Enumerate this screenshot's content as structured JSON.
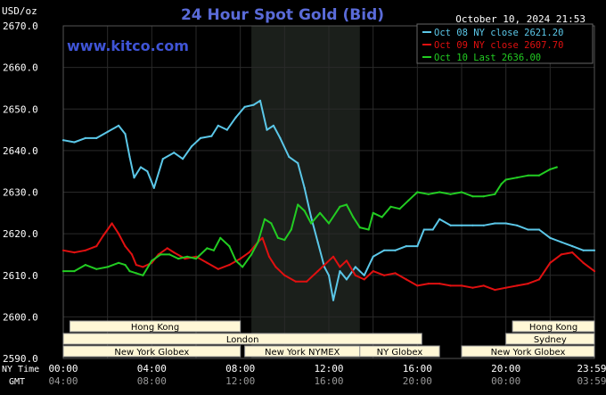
{
  "header": {
    "unit": "USD/oz",
    "title": "24 Hour Spot Gold (Bid)",
    "timestamp": "October 10, 2024 21:53",
    "website": "www.kitco.com"
  },
  "colors": {
    "background": "#000000",
    "plot_background": "#000000",
    "nymex_band": "#1b1f1b",
    "grid": "#2a2a2a",
    "title": "#5a6bd8",
    "axis_text": "#ffffff",
    "session_bar_bg": "#fff7d6",
    "session_bar_border": "#9a9a9a",
    "session_bar_text": "#000000",
    "website": "#3f54d6"
  },
  "legend": [
    {
      "label": "Oct 08 NY close 2621.20",
      "color": "#5bc7e8"
    },
    {
      "label": "Oct 09 NY close 2607.70",
      "color": "#e01010"
    },
    {
      "label": "Oct 10 Last 2636.00",
      "color": "#22cc22"
    }
  ],
  "sessions": [
    {
      "label": "Hong Kong",
      "row": 0,
      "start": 0.3,
      "end": 8.0
    },
    {
      "label": "Hong Kong",
      "row": 0,
      "start": 20.3,
      "end": 24.0
    },
    {
      "label": "London",
      "row": 1,
      "start": 0.0,
      "end": 16.2
    },
    {
      "label": "Sydney",
      "row": 1,
      "start": 20.0,
      "end": 24.0
    },
    {
      "label": "New York Globex",
      "row": 2,
      "start": 0.0,
      "end": 8.0
    },
    {
      "label": "New York NYMEX",
      "row": 2,
      "start": 8.2,
      "end": 13.4
    },
    {
      "label": "NY Globex",
      "row": 2,
      "start": 13.4,
      "end": 17.0
    },
    {
      "label": "New York Globex",
      "row": 2,
      "start": 18.0,
      "end": 24.0
    }
  ],
  "bottom_axis": {
    "ny_label": "NY Time",
    "gmt_label": "GMT",
    "ny_ticks": [
      "00:00",
      "04:00",
      "08:00",
      "12:00",
      "16:00",
      "20:00",
      "23:59"
    ],
    "gmt_ticks": [
      "04:00",
      "08:00",
      "12:00",
      "16:00",
      "20:00",
      "00:00",
      "03:59"
    ]
  },
  "chart_data": {
    "type": "line",
    "title": "24 Hour Spot Gold (Bid)",
    "ylabel": "USD/oz",
    "ylim": [
      2590,
      2670
    ],
    "yticks": [
      "2670.0",
      "2660.0",
      "2650.0",
      "2640.0",
      "2630.0",
      "2620.0",
      "2610.0",
      "2600.0",
      "2590.0"
    ],
    "xlim": [
      0,
      24
    ],
    "nymex_band": [
      8.5,
      13.4
    ],
    "series": [
      {
        "name": "Oct 08 NY close 2621.20",
        "color": "#5bc7e8",
        "points": [
          [
            0,
            2642.5
          ],
          [
            0.5,
            2642.0
          ],
          [
            1.0,
            2643.0
          ],
          [
            1.5,
            2643.0
          ],
          [
            2.0,
            2644.5
          ],
          [
            2.5,
            2646.0
          ],
          [
            2.8,
            2644.0
          ],
          [
            3.0,
            2638.5
          ],
          [
            3.2,
            2633.5
          ],
          [
            3.5,
            2636.0
          ],
          [
            3.8,
            2635.0
          ],
          [
            4.1,
            2631.0
          ],
          [
            4.5,
            2638.0
          ],
          [
            5.0,
            2639.5
          ],
          [
            5.4,
            2638.0
          ],
          [
            5.8,
            2641.0
          ],
          [
            6.2,
            2643.0
          ],
          [
            6.7,
            2643.5
          ],
          [
            7.0,
            2646.0
          ],
          [
            7.4,
            2645.0
          ],
          [
            7.8,
            2648.0
          ],
          [
            8.2,
            2650.5
          ],
          [
            8.6,
            2651.0
          ],
          [
            8.9,
            2652.0
          ],
          [
            9.2,
            2645.0
          ],
          [
            9.5,
            2646.0
          ],
          [
            9.8,
            2643.0
          ],
          [
            10.2,
            2638.5
          ],
          [
            10.6,
            2637.0
          ],
          [
            10.9,
            2631.0
          ],
          [
            11.2,
            2624.0
          ],
          [
            11.5,
            2618.0
          ],
          [
            11.8,
            2612.0
          ],
          [
            12.0,
            2610.0
          ],
          [
            12.2,
            2604.0
          ],
          [
            12.5,
            2611.0
          ],
          [
            12.8,
            2609.0
          ],
          [
            13.2,
            2612.0
          ],
          [
            13.6,
            2610.0
          ],
          [
            14.0,
            2614.5
          ],
          [
            14.5,
            2616.0
          ],
          [
            15.0,
            2616.0
          ],
          [
            15.5,
            2617.0
          ],
          [
            16.0,
            2617.0
          ],
          [
            16.3,
            2621.0
          ],
          [
            16.7,
            2621.0
          ],
          [
            17.0,
            2623.5
          ],
          [
            17.5,
            2622.0
          ],
          [
            18.0,
            2622.0
          ],
          [
            18.5,
            2622.0
          ],
          [
            19.0,
            2622.0
          ],
          [
            19.5,
            2622.5
          ],
          [
            20.0,
            2622.5
          ],
          [
            20.5,
            2622.0
          ],
          [
            21.0,
            2621.0
          ],
          [
            21.5,
            2621.0
          ],
          [
            22.0,
            2619.0
          ],
          [
            22.5,
            2618.0
          ],
          [
            23.0,
            2617.0
          ],
          [
            23.5,
            2616.0
          ],
          [
            24.0,
            2616.0
          ]
        ]
      },
      {
        "name": "Oct 09 NY close 2607.70",
        "color": "#e01010",
        "points": [
          [
            0,
            2616.0
          ],
          [
            0.5,
            2615.5
          ],
          [
            1.0,
            2616.0
          ],
          [
            1.5,
            2617.0
          ],
          [
            1.8,
            2619.5
          ],
          [
            2.0,
            2621.0
          ],
          [
            2.2,
            2622.5
          ],
          [
            2.5,
            2620.0
          ],
          [
            2.8,
            2617.0
          ],
          [
            3.1,
            2615.0
          ],
          [
            3.3,
            2612.5
          ],
          [
            3.6,
            2612.0
          ],
          [
            4.0,
            2613.0
          ],
          [
            4.3,
            2615.0
          ],
          [
            4.7,
            2616.5
          ],
          [
            5.0,
            2615.5
          ],
          [
            5.5,
            2614.0
          ],
          [
            6.0,
            2614.5
          ],
          [
            6.5,
            2613.0
          ],
          [
            7.0,
            2611.5
          ],
          [
            7.5,
            2612.5
          ],
          [
            8.0,
            2614.0
          ],
          [
            8.4,
            2615.5
          ],
          [
            8.8,
            2618.0
          ],
          [
            9.0,
            2619.0
          ],
          [
            9.3,
            2614.5
          ],
          [
            9.6,
            2612.0
          ],
          [
            10.0,
            2610.0
          ],
          [
            10.5,
            2608.5
          ],
          [
            11.0,
            2608.5
          ],
          [
            11.5,
            2611.0
          ],
          [
            11.9,
            2613.0
          ],
          [
            12.2,
            2614.5
          ],
          [
            12.5,
            2612.0
          ],
          [
            12.8,
            2613.5
          ],
          [
            13.2,
            2610.0
          ],
          [
            13.6,
            2609.0
          ],
          [
            14.0,
            2611.0
          ],
          [
            14.5,
            2610.0
          ],
          [
            15.0,
            2610.5
          ],
          [
            15.5,
            2609.0
          ],
          [
            16.0,
            2607.5
          ],
          [
            16.5,
            2608.0
          ],
          [
            17.0,
            2608.0
          ],
          [
            17.5,
            2607.5
          ],
          [
            18.0,
            2607.5
          ],
          [
            18.5,
            2607.0
          ],
          [
            19.0,
            2607.5
          ],
          [
            19.5,
            2606.5
          ],
          [
            20.0,
            2607.0
          ],
          [
            20.5,
            2607.5
          ],
          [
            21.0,
            2608.0
          ],
          [
            21.5,
            2609.0
          ],
          [
            22.0,
            2613.0
          ],
          [
            22.5,
            2615.0
          ],
          [
            23.0,
            2615.5
          ],
          [
            23.5,
            2613.0
          ],
          [
            24.0,
            2611.0
          ]
        ]
      },
      {
        "name": "Oct 10 Last 2636.00",
        "color": "#22cc22",
        "points": [
          [
            0,
            2611.0
          ],
          [
            0.5,
            2611.0
          ],
          [
            1.0,
            2612.5
          ],
          [
            1.5,
            2611.5
          ],
          [
            2.0,
            2612.0
          ],
          [
            2.5,
            2613.0
          ],
          [
            2.8,
            2612.5
          ],
          [
            3.0,
            2611.0
          ],
          [
            3.3,
            2610.5
          ],
          [
            3.6,
            2610.0
          ],
          [
            4.0,
            2613.5
          ],
          [
            4.4,
            2615.0
          ],
          [
            4.8,
            2615.0
          ],
          [
            5.2,
            2614.0
          ],
          [
            5.6,
            2614.5
          ],
          [
            6.0,
            2614.0
          ],
          [
            6.5,
            2616.5
          ],
          [
            6.8,
            2616.0
          ],
          [
            7.1,
            2619.0
          ],
          [
            7.5,
            2617.0
          ],
          [
            7.8,
            2613.5
          ],
          [
            8.1,
            2612.0
          ],
          [
            8.5,
            2615.0
          ],
          [
            8.8,
            2618.0
          ],
          [
            9.1,
            2623.5
          ],
          [
            9.4,
            2622.5
          ],
          [
            9.7,
            2619.0
          ],
          [
            10.0,
            2618.5
          ],
          [
            10.3,
            2621.0
          ],
          [
            10.6,
            2627.0
          ],
          [
            10.9,
            2625.5
          ],
          [
            11.2,
            2622.5
          ],
          [
            11.6,
            2625.0
          ],
          [
            12.0,
            2622.5
          ],
          [
            12.5,
            2626.5
          ],
          [
            12.8,
            2627.0
          ],
          [
            13.1,
            2624.0
          ],
          [
            13.4,
            2621.5
          ],
          [
            13.8,
            2621.0
          ],
          [
            14.0,
            2625.0
          ],
          [
            14.4,
            2624.0
          ],
          [
            14.8,
            2626.5
          ],
          [
            15.2,
            2626.0
          ],
          [
            15.6,
            2628.0
          ],
          [
            16.0,
            2630.0
          ],
          [
            16.5,
            2629.5
          ],
          [
            17.0,
            2630.0
          ],
          [
            17.5,
            2629.5
          ],
          [
            18.0,
            2630.0
          ],
          [
            18.5,
            2629.0
          ],
          [
            19.0,
            2629.0
          ],
          [
            19.5,
            2629.5
          ],
          [
            19.8,
            2632.0
          ],
          [
            20.0,
            2633.0
          ],
          [
            20.5,
            2633.5
          ],
          [
            21.0,
            2634.0
          ],
          [
            21.5,
            2634.0
          ],
          [
            22.0,
            2635.5
          ],
          [
            22.3,
            2636.0
          ]
        ]
      }
    ]
  }
}
